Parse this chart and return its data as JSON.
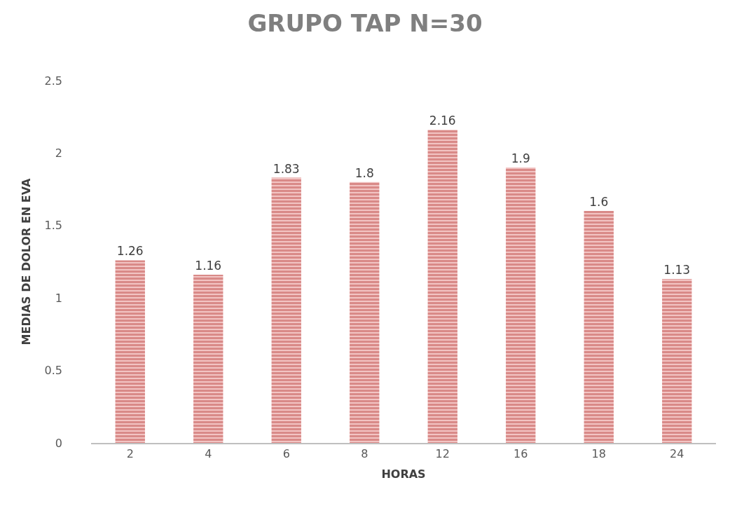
{
  "chart_data": {
    "type": "bar",
    "title": "GRUPO TAP N=30",
    "xlabel": "HORAS",
    "ylabel": "MEDIAS DE DOLOR EN EVA",
    "categories": [
      "2",
      "4",
      "6",
      "8",
      "12",
      "16",
      "18",
      "24"
    ],
    "values": [
      1.26,
      1.16,
      1.83,
      1.8,
      2.16,
      1.9,
      1.6,
      1.13
    ],
    "color": "#c0504d",
    "ylim": [
      0,
      2.5
    ],
    "yticks": [
      0,
      0.5,
      1,
      1.5,
      2,
      2.5
    ],
    "data_labels": true
  }
}
